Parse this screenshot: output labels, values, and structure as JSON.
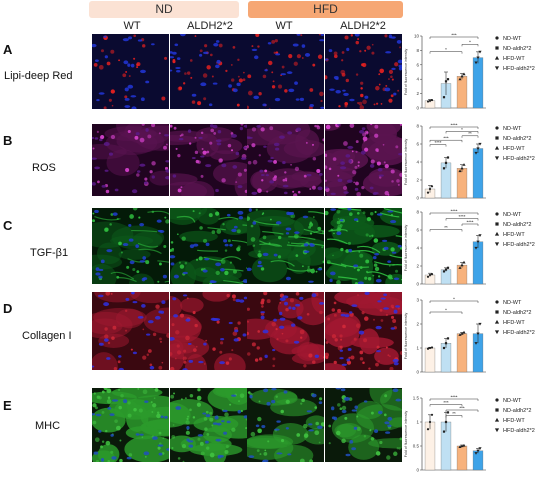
{
  "header": {
    "groups": [
      {
        "label": "ND",
        "color": "#fbe2d4"
      },
      {
        "label": "HFD",
        "color": "#f6a774"
      }
    ],
    "columns": [
      "WT",
      "ALDH2*2",
      "WT",
      "ALDH2*2"
    ]
  },
  "rows": [
    {
      "letter": "A",
      "name": "Lipi-deep Red",
      "stain": "lipid"
    },
    {
      "letter": "B",
      "name": "ROS",
      "stain": "ros"
    },
    {
      "letter": "C",
      "name": "TGF-β1",
      "stain": "tgf"
    },
    {
      "letter": "D",
      "name": "Collagen I",
      "stain": "collagen"
    },
    {
      "letter": "E",
      "name": "MHC",
      "stain": "mhc"
    }
  ],
  "colors": {
    "nd_wt": "#fdf1e6",
    "nd_aldh": "#bfe0f3",
    "hfd_wt": "#f7b27c",
    "hfd_aldh": "#3ea3e8"
  },
  "chart_data": [
    {
      "type": "bar",
      "panel": "A",
      "ylabel": "Fold of fluorescence intensity",
      "ylim": [
        0,
        10
      ],
      "yticks": [
        0,
        2,
        4,
        6,
        8,
        10
      ],
      "series": [
        {
          "name": "ND-WT",
          "marker": "circle",
          "value": 1.0,
          "error": 0.2,
          "points": [
            0.9,
            1.0,
            1.1
          ]
        },
        {
          "name": "ND-aldh2*2",
          "marker": "square",
          "value": 3.4,
          "error": 1.6,
          "points": [
            1.5,
            3.7,
            4.0
          ]
        },
        {
          "name": "HFD-WT",
          "marker": "triangle-up",
          "value": 4.4,
          "error": 0.4,
          "points": [
            4.0,
            4.4,
            4.7
          ]
        },
        {
          "name": "HFD-aldh2*2",
          "marker": "triangle-down",
          "value": 7.0,
          "error": 0.8,
          "points": [
            6.3,
            7.0,
            7.8
          ]
        }
      ],
      "significance": [
        {
          "from": 0,
          "to": 3,
          "label": "***"
        },
        {
          "from": 2,
          "to": 3,
          "label": "*"
        },
        {
          "from": 0,
          "to": 2,
          "label": "*"
        }
      ]
    },
    {
      "type": "bar",
      "panel": "B",
      "ylabel": "Fold of fluorescence intensity",
      "ylim": [
        0,
        8
      ],
      "yticks": [
        0,
        2,
        4,
        6,
        8
      ],
      "series": [
        {
          "name": "ND-WT",
          "marker": "circle",
          "value": 1.0,
          "error": 0.4,
          "points": [
            0.6,
            1.0,
            1.3
          ]
        },
        {
          "name": "ND-aldh2*2",
          "marker": "square",
          "value": 3.9,
          "error": 0.6,
          "points": [
            3.3,
            3.9,
            4.5
          ]
        },
        {
          "name": "HFD-WT",
          "marker": "triangle-up",
          "value": 3.3,
          "error": 0.4,
          "points": [
            3.0,
            3.3,
            3.7
          ]
        },
        {
          "name": "HFD-aldh2*2",
          "marker": "triangle-down",
          "value": 5.5,
          "error": 0.5,
          "points": [
            5.0,
            5.5,
            6.0
          ]
        }
      ],
      "significance": [
        {
          "from": 0,
          "to": 3,
          "label": "****"
        },
        {
          "from": 1,
          "to": 3,
          "label": "*"
        },
        {
          "from": 2,
          "to": 3,
          "label": "**"
        },
        {
          "from": 0,
          "to": 2,
          "label": "***"
        },
        {
          "from": 0,
          "to": 1,
          "label": "****"
        }
      ]
    },
    {
      "type": "bar",
      "panel": "C",
      "ylabel": "Fold of fluorescence intensity",
      "ylim": [
        0,
        8
      ],
      "yticks": [
        0,
        2,
        4,
        6,
        8
      ],
      "series": [
        {
          "name": "ND-WT",
          "marker": "circle",
          "value": 1.0,
          "error": 0.2,
          "points": [
            0.8,
            1.0,
            1.1
          ]
        },
        {
          "name": "ND-aldh2*2",
          "marker": "square",
          "value": 1.6,
          "error": 0.2,
          "points": [
            1.4,
            1.6,
            1.8
          ]
        },
        {
          "name": "HFD-WT",
          "marker": "triangle-up",
          "value": 2.1,
          "error": 0.3,
          "points": [
            1.8,
            2.1,
            2.4
          ]
        },
        {
          "name": "HFD-aldh2*2",
          "marker": "triangle-down",
          "value": 4.7,
          "error": 0.7,
          "points": [
            4.0,
            4.7,
            5.4
          ]
        }
      ],
      "significance": [
        {
          "from": 0,
          "to": 3,
          "label": "****"
        },
        {
          "from": 1,
          "to": 3,
          "label": "****"
        },
        {
          "from": 2,
          "to": 3,
          "label": "****"
        },
        {
          "from": 0,
          "to": 2,
          "label": "**"
        }
      ]
    },
    {
      "type": "bar",
      "panel": "D",
      "ylabel": "Fold of fluorescence intensity",
      "ylim": [
        0,
        3
      ],
      "yticks": [
        0,
        1,
        2,
        3
      ],
      "series": [
        {
          "name": "ND-WT",
          "marker": "circle",
          "value": 1.0,
          "error": 0.03,
          "points": [
            0.97,
            1.0,
            1.02
          ]
        },
        {
          "name": "ND-aldh2*2",
          "marker": "square",
          "value": 1.2,
          "error": 0.2,
          "points": [
            1.0,
            1.2,
            1.4
          ]
        },
        {
          "name": "HFD-WT",
          "marker": "triangle-up",
          "value": 1.6,
          "error": 0.05,
          "points": [
            1.55,
            1.6,
            1.65
          ]
        },
        {
          "name": "HFD-aldh2*2",
          "marker": "triangle-down",
          "value": 1.6,
          "error": 0.4,
          "points": [
            1.2,
            1.6,
            2.0
          ]
        }
      ],
      "significance": [
        {
          "from": 0,
          "to": 3,
          "label": "*"
        },
        {
          "from": 0,
          "to": 2,
          "label": "*"
        }
      ]
    },
    {
      "type": "bar",
      "panel": "E",
      "ylabel": "Fold of fluorescence intensity",
      "ylim": [
        0,
        1.5
      ],
      "yticks": [
        0,
        0.5,
        1.0,
        1.5
      ],
      "series": [
        {
          "name": "ND-WT",
          "marker": "circle",
          "value": 1.0,
          "error": 0.15,
          "points": [
            0.85,
            1.0,
            1.15
          ]
        },
        {
          "name": "ND-aldh2*2",
          "marker": "square",
          "value": 1.0,
          "error": 0.2,
          "points": [
            0.8,
            1.0,
            1.2
          ]
        },
        {
          "name": "HFD-WT",
          "marker": "triangle-up",
          "value": 0.5,
          "error": 0.02,
          "points": [
            0.48,
            0.5,
            0.51
          ]
        },
        {
          "name": "HFD-aldh2*2",
          "marker": "triangle-down",
          "value": 0.4,
          "error": 0.05,
          "points": [
            0.35,
            0.4,
            0.45
          ]
        }
      ],
      "significance": [
        {
          "from": 0,
          "to": 3,
          "label": "****"
        },
        {
          "from": 0,
          "to": 2,
          "label": "***"
        },
        {
          "from": 1,
          "to": 3,
          "label": "***"
        },
        {
          "from": 1,
          "to": 2,
          "label": "**"
        }
      ]
    }
  ]
}
